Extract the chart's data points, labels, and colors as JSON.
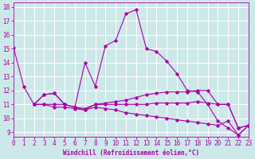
{
  "xlabel": "Windchill (Refroidissement éolien,°C)",
  "xlim": [
    0,
    23
  ],
  "ylim": [
    8.7,
    18.3
  ],
  "yticks": [
    9,
    10,
    11,
    12,
    13,
    14,
    15,
    16,
    17,
    18
  ],
  "xticks": [
    0,
    1,
    2,
    3,
    4,
    5,
    6,
    7,
    8,
    9,
    10,
    11,
    12,
    13,
    14,
    15,
    16,
    17,
    18,
    19,
    20,
    21,
    22,
    23
  ],
  "bg_color": "#cde8e8",
  "line_color": "#aa00aa",
  "grid_color": "#ffffff",
  "lines": [
    {
      "x": [
        0,
        1,
        2,
        3,
        4,
        5,
        6,
        7,
        8,
        9,
        10,
        11,
        12,
        13,
        14,
        15,
        16,
        17,
        18,
        19,
        20,
        21,
        22,
        23
      ],
      "y": [
        15.1,
        12.3,
        11.0,
        11.7,
        11.8,
        11.0,
        10.8,
        14.0,
        12.3,
        15.2,
        15.6,
        17.5,
        17.8,
        15.0,
        14.8,
        14.1,
        13.2,
        12.0,
        11.9,
        11.0,
        9.8,
        9.3,
        8.8,
        9.5
      ]
    },
    {
      "x": [
        2,
        3,
        4,
        5,
        6,
        7,
        8,
        9,
        10,
        11,
        12,
        13,
        14,
        15,
        16,
        17,
        18,
        19,
        20,
        21,
        22,
        23
      ],
      "y": [
        11.0,
        11.7,
        11.8,
        11.0,
        10.8,
        10.7,
        11.0,
        11.1,
        11.2,
        11.3,
        11.5,
        11.7,
        11.8,
        11.9,
        11.9,
        11.9,
        12.0,
        12.0,
        11.0,
        11.0,
        9.3,
        9.5
      ]
    },
    {
      "x": [
        2,
        3,
        4,
        5,
        6,
        7,
        8,
        9,
        10,
        11,
        12,
        13,
        14,
        15,
        16,
        17,
        18,
        19,
        20,
        21,
        22,
        23
      ],
      "y": [
        11.0,
        11.0,
        11.0,
        11.0,
        10.8,
        10.6,
        11.0,
        11.0,
        11.0,
        11.0,
        11.0,
        11.0,
        11.1,
        11.1,
        11.1,
        11.1,
        11.2,
        11.1,
        11.0,
        11.0,
        9.3,
        9.5
      ]
    },
    {
      "x": [
        2,
        3,
        4,
        5,
        6,
        7,
        8,
        9,
        10,
        11,
        12,
        13,
        14,
        15,
        16,
        17,
        18,
        19,
        20,
        21,
        22,
        23
      ],
      "y": [
        11.0,
        11.0,
        10.8,
        10.8,
        10.7,
        10.6,
        10.8,
        10.7,
        10.6,
        10.4,
        10.3,
        10.2,
        10.1,
        10.0,
        9.9,
        9.8,
        9.7,
        9.6,
        9.5,
        9.8,
        8.8,
        9.5
      ]
    }
  ]
}
